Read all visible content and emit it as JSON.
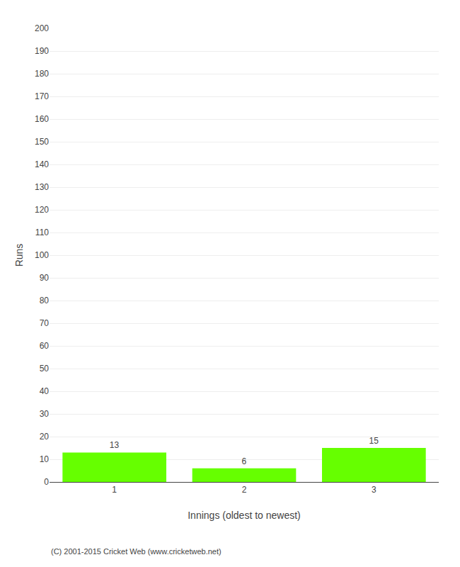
{
  "chart_data": {
    "type": "bar",
    "categories": [
      "1",
      "2",
      "3"
    ],
    "values": [
      13,
      6,
      15
    ],
    "color": "#66ff00",
    "xlabel": "Innings (oldest to newest)",
    "ylabel": "Runs",
    "ylim": [
      0,
      200
    ],
    "yticks": [
      0,
      10,
      20,
      30,
      40,
      50,
      60,
      70,
      80,
      90,
      100,
      110,
      120,
      130,
      140,
      150,
      160,
      170,
      180,
      190,
      200
    ],
    "grid": true,
    "data_labels": true,
    "annotations": [
      "(C) 2001-2015 Cricket Web (www.cricketweb.net)"
    ]
  }
}
